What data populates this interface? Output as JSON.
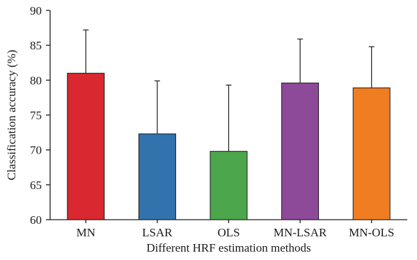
{
  "chart_data": {
    "type": "bar",
    "title": "",
    "xlabel": "Different HRF estimation methods",
    "ylabel": "Classification accuracy (%)",
    "ylim": [
      60,
      90
    ],
    "yticks": [
      60,
      65,
      70,
      75,
      80,
      85,
      90
    ],
    "categories": [
      "MN",
      "LSAR",
      "OLS",
      "MN-LSAR",
      "MN-OLS"
    ],
    "values": [
      81.0,
      72.3,
      69.8,
      79.6,
      78.9
    ],
    "error_upper": [
      6.2,
      7.6,
      9.5,
      6.3,
      5.9
    ],
    "colors": [
      "#d9282f",
      "#3272ad",
      "#4ca64c",
      "#8c4a99",
      "#f07d22"
    ],
    "grid": false,
    "legend": "none"
  }
}
